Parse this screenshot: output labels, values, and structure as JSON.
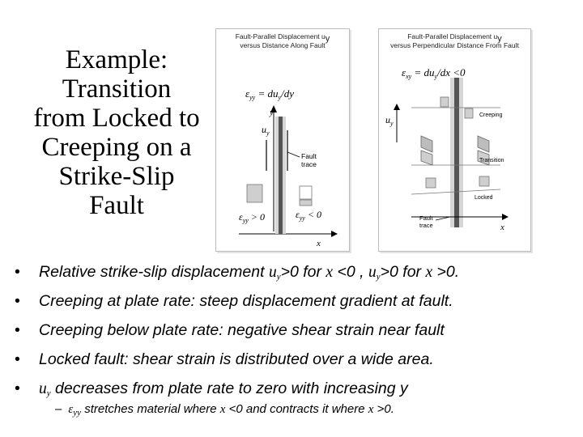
{
  "slide": {
    "title_lines": [
      "Example:",
      "Transition",
      "from Locked to",
      "Creeping on a",
      "Strike-Slip",
      "Fault"
    ]
  },
  "figure_left": {
    "title_lines": [
      "Fault-Parallel Displacement u",
      "versus Distance Along Fault"
    ],
    "title_sub": "y",
    "strain_label": "ε",
    "strain_label_sub": "yy",
    "strain_eq": " = du",
    "strain_eq_sub": "y",
    "strain_eq_tail": "/dy",
    "axis_y": "y",
    "axis_x": "x",
    "uy_label": "u",
    "uy_label_sub": "y",
    "fault_label_lines": [
      "Fault",
      "trace"
    ],
    "left_strain": "ε",
    "left_strain_sub": "yy",
    "left_strain_tail": " > 0",
    "right_strain": "ε",
    "right_strain_sub": "yy",
    "right_strain_tail": " < 0"
  },
  "figure_right": {
    "title_lines": [
      "Fault-Parallel Displacement u",
      "versus Perpendicular Distance From Fault"
    ],
    "title_sub": "y",
    "strain_label": "ε",
    "strain_label_sub": "xy",
    "strain_eq": " = du",
    "strain_eq_sub": "y",
    "strain_eq_tail": "/dx <0",
    "uy_label": "u",
    "uy_label_sub": "y",
    "zone_creeping": "Creeping",
    "zone_transition": "Transition",
    "zone_locked": "Locked",
    "axis_x": "x",
    "fault_label_lines": [
      "Fault",
      "trace"
    ]
  },
  "bullets": {
    "b1_a": "Relative strike-slip displacement ",
    "b1_u": "u",
    "b1_sub": "y",
    "b1_b": ">0 for ",
    "b1_x": "x",
    "b1_c": " <0 , ",
    "b1_u2": "u",
    "b1_sub2": "y",
    "b1_d": ">0 for  ",
    "b1_x2": "x",
    "b1_e": " >0.",
    "b2": "Creeping at plate rate: steep displacement gradient at fault.",
    "b3": " Creeping below plate rate: negative shear strain near fault",
    "b4": "Locked fault: shear strain is distributed over a wide area.",
    "b5_u": "u",
    "b5_sub": "y",
    "b5_text": "  decreases from plate rate to zero with increasing y",
    "bullet_char": "•"
  },
  "subbullet": {
    "dash": "–",
    "eps": "ε",
    "eps_sub": "yy",
    "a": " stretches material where ",
    "x1": "x",
    "b": " <0 and contracts it where ",
    "x2": "x",
    "c": " >0."
  },
  "colors": {
    "fault_dark": "#555555",
    "fault_light": "#c8c8c8",
    "block_fill": "#cfcfcf"
  }
}
